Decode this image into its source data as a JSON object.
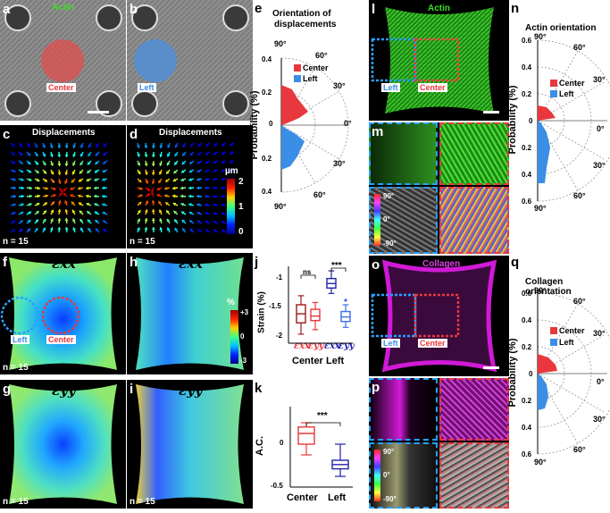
{
  "panels": {
    "a": {
      "letter": "a",
      "title": "Actin",
      "region": "Center",
      "footer": ""
    },
    "b": {
      "letter": "b",
      "region": "Left"
    },
    "c": {
      "letter": "c",
      "title": "Displacements",
      "n": "n = 15"
    },
    "d": {
      "letter": "d",
      "title": "Displacements",
      "n": "n = 15",
      "colorbar_unit": "µm",
      "colorbar_ticks": [
        "2",
        "1",
        "0"
      ]
    },
    "e": {
      "letter": "e",
      "title_line1": "Orientation of",
      "title_line2": "displacements",
      "ylabel": "Probability (%)",
      "r_ticks": [
        "0.4",
        "0.2",
        "0",
        "0.2",
        "0.4"
      ],
      "angle_ticks": [
        "90°",
        "60°",
        "30°",
        "0°",
        "30°",
        "60°",
        "90°"
      ],
      "legend": [
        "Center",
        "Left"
      ]
    },
    "f": {
      "letter": "f",
      "title": "εxx",
      "n": "n = 15",
      "left": "Left",
      "center": "Center",
      "colorbar_unit": "%",
      "colorbar_ticks": [
        "+3",
        "0",
        "-3"
      ]
    },
    "g": {
      "letter": "g",
      "title": "εyy",
      "n": "n = 15"
    },
    "h": {
      "letter": "h",
      "title": "εxx"
    },
    "i": {
      "letter": "i",
      "title": "εyy",
      "n": "n = 15"
    },
    "j": {
      "letter": "j",
      "ylabel": "Strain (%)",
      "yticks": [
        "-1",
        "-1.5",
        "-2"
      ],
      "ns": "ns",
      "sig": "***",
      "sub_labels": [
        "εxx",
        "εyy",
        "εxx",
        "εyy"
      ],
      "xlabels": [
        "Center",
        "Left"
      ]
    },
    "k": {
      "letter": "k",
      "ylabel": "A.C.",
      "yticks": [
        "0",
        "-0.5"
      ],
      "sig": "***",
      "xlabels": [
        "Center",
        "Left"
      ]
    },
    "l": {
      "letter": "l",
      "title": "Actin",
      "left": "Left",
      "center": "Center"
    },
    "m": {
      "letter": "m",
      "scale_ticks": [
        "90°",
        "0°",
        "-90°"
      ]
    },
    "n": {
      "letter": "n",
      "title": "Actin orientation",
      "ylabel": "Probability (%)",
      "r_ticks": [
        "0.6",
        "0.4",
        "0.2",
        "0",
        "0.2",
        "0.4",
        "0.6"
      ],
      "angle_ticks": [
        "90°",
        "60°",
        "30°",
        "0°",
        "30°",
        "60°",
        "90°"
      ],
      "legend": [
        "Center",
        "Left"
      ]
    },
    "o": {
      "letter": "o",
      "title": "Collagen",
      "left": "Left",
      "center": "Center"
    },
    "p": {
      "letter": "p",
      "scale_ticks": [
        "90°",
        "0°",
        "-90°"
      ]
    },
    "q": {
      "letter": "q",
      "title": "Collagen orientation",
      "ylabel": "Probability (%)",
      "r_ticks": [
        "0.6",
        "0.4",
        "0.2",
        "0",
        "0.2",
        "0.4",
        "0.6"
      ],
      "angle_ticks": [
        "90°",
        "60°",
        "30°",
        "0°",
        "30°",
        "60°",
        "90°"
      ],
      "legend": [
        "Center",
        "Left"
      ]
    }
  },
  "colors": {
    "center": "#e8383d",
    "left": "#3a8ee6",
    "dark_red": "#9e1b1b",
    "dark_blue": "#2222aa",
    "actin": "#38c21f",
    "collagen": "#d01ad6"
  },
  "chart_data": [
    {
      "type": "bar",
      "panel": "j",
      "categories": [
        "Center εxx",
        "Center εyy",
        "Left εxx",
        "Left εyy"
      ],
      "ylim": [
        -2.2,
        -0.5
      ],
      "box": [
        {
          "min": -2.0,
          "q1": -1.75,
          "median": -1.55,
          "q3": -1.35,
          "max": -1.15
        },
        {
          "min": -1.9,
          "q1": -1.7,
          "median": -1.6,
          "q3": -1.45,
          "max": -1.3
        },
        {
          "min": -1.1,
          "q1": -0.98,
          "median": -0.88,
          "q3": -0.77,
          "max": -0.6
        },
        {
          "min": -1.85,
          "q1": -1.72,
          "median": -1.62,
          "q3": -1.5,
          "max": -1.35
        }
      ],
      "outliers": [
        {
          "i": 3,
          "v": -1.25
        }
      ]
    },
    {
      "type": "bar",
      "panel": "k",
      "categories": [
        "Center",
        "Left"
      ],
      "ylim": [
        -0.5,
        0.25
      ],
      "box": [
        {
          "min": -0.2,
          "q1": -0.1,
          "median": 0.0,
          "q3": 0.06,
          "max": 0.1
        },
        {
          "min": -0.4,
          "q1": -0.33,
          "median": -0.29,
          "q3": -0.25,
          "max": -0.1
        }
      ]
    }
  ]
}
